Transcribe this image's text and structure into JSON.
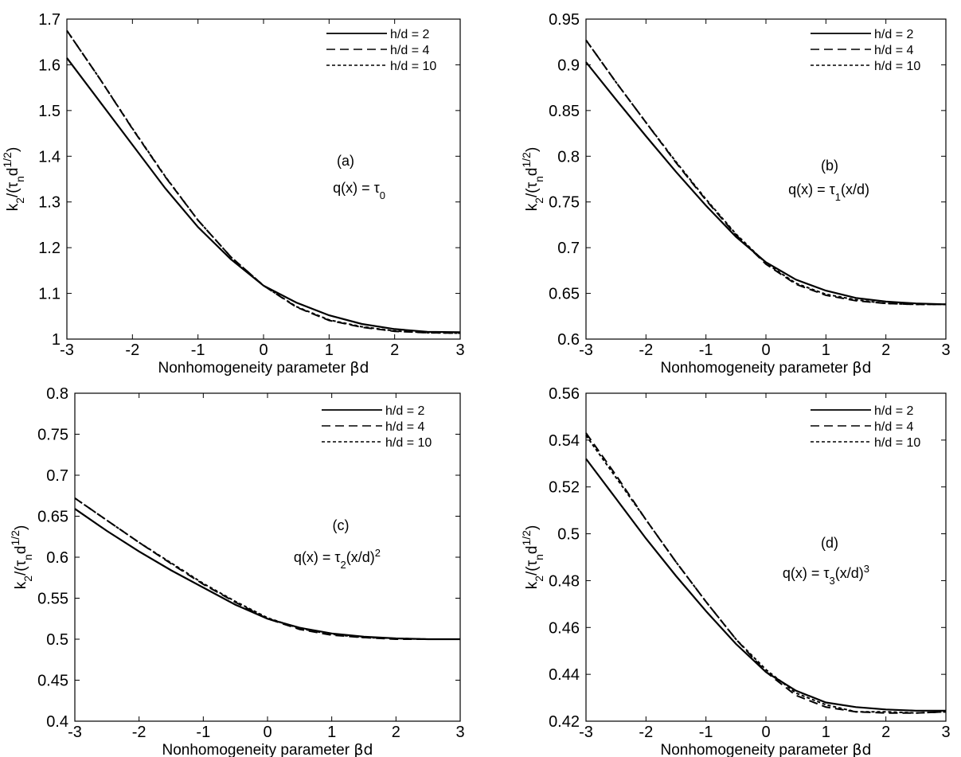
{
  "chart_data": [
    {
      "type": "line",
      "panel_label": "(a)",
      "annotation": "q(x) = τ",
      "annotation_sub": "0",
      "annotation_sup": "",
      "annotation_tail": "",
      "xlabel_main": "Nonhomogeneity parameter ",
      "xlabel_sym": "βd",
      "ylabel": {
        "k": "k",
        "k_sub": "2",
        "mid": "/(τ",
        "tau_sub": "n",
        "d": "d",
        "d_sup": "1/2",
        "end": ")"
      },
      "xlim": [
        -3,
        3
      ],
      "ylim": [
        1,
        1.7
      ],
      "xticks": [
        "-3",
        "-2",
        "-1",
        "0",
        "1",
        "2",
        "3"
      ],
      "xtick_values": [
        -3,
        -2,
        -1,
        0,
        1,
        2,
        3
      ],
      "yticks": [
        "1",
        "1.1",
        "1.2",
        "1.3",
        "1.4",
        "1.5",
        "1.6",
        "1.7"
      ],
      "ytick_values": [
        1,
        1.1,
        1.2,
        1.3,
        1.4,
        1.5,
        1.6,
        1.7
      ],
      "x": [
        -3,
        -2.5,
        -2,
        -1.5,
        -1,
        -0.5,
        0,
        0.5,
        1,
        1.5,
        2,
        2.5,
        3
      ],
      "series": [
        {
          "name": "h/d = 2",
          "style": "solid",
          "values": [
            1.615,
            1.52,
            1.425,
            1.33,
            1.245,
            1.175,
            1.117,
            1.08,
            1.052,
            1.033,
            1.022,
            1.016,
            1.015
          ]
        },
        {
          "name": "h/d = 4",
          "style": "dashed",
          "values": [
            1.675,
            1.57,
            1.46,
            1.355,
            1.26,
            1.18,
            1.117,
            1.07,
            1.041,
            1.026,
            1.017,
            1.014,
            1.013
          ]
        },
        {
          "name": "h/d = 10",
          "style": "dotted",
          "values": [
            1.675,
            1.57,
            1.461,
            1.356,
            1.26,
            1.18,
            1.117,
            1.071,
            1.042,
            1.027,
            1.018,
            1.014,
            1.013
          ]
        }
      ]
    },
    {
      "type": "line",
      "panel_label": "(b)",
      "annotation": "q(x) = τ",
      "annotation_sub": "1",
      "annotation_sup": "",
      "annotation_tail": "(x/d)",
      "xlabel_main": "Nonhomogeneity parameter ",
      "xlabel_sym": "βd",
      "ylabel": {
        "k": "k",
        "k_sub": "2",
        "mid": "/(τ",
        "tau_sub": "n",
        "d": "d",
        "d_sup": "1/2",
        "end": ")"
      },
      "xlim": [
        -3,
        3
      ],
      "ylim": [
        0.6,
        0.95
      ],
      "xticks": [
        "-3",
        "-2",
        "-1",
        "0",
        "1",
        "2",
        "3"
      ],
      "xtick_values": [
        -3,
        -2,
        -1,
        0,
        1,
        2,
        3
      ],
      "yticks": [
        "0.6",
        "0.65",
        "0.7",
        "0.75",
        "0.8",
        "0.85",
        "0.9",
        "0.95"
      ],
      "ytick_values": [
        0.6,
        0.65,
        0.7,
        0.75,
        0.8,
        0.85,
        0.9,
        0.95
      ],
      "x": [
        -3,
        -2.5,
        -2,
        -1.5,
        -1,
        -0.5,
        0,
        0.5,
        1,
        1.5,
        2,
        2.5,
        3
      ],
      "series": [
        {
          "name": "h/d = 2",
          "style": "solid",
          "values": [
            0.903,
            0.862,
            0.822,
            0.783,
            0.746,
            0.712,
            0.684,
            0.665,
            0.653,
            0.645,
            0.641,
            0.639,
            0.638
          ]
        },
        {
          "name": "h/d = 4",
          "style": "dashed",
          "values": [
            0.927,
            0.881,
            0.837,
            0.793,
            0.752,
            0.714,
            0.682,
            0.66,
            0.648,
            0.642,
            0.639,
            0.638,
            0.638
          ]
        },
        {
          "name": "h/d = 10",
          "style": "dotted",
          "values": [
            0.927,
            0.881,
            0.837,
            0.794,
            0.753,
            0.715,
            0.683,
            0.661,
            0.649,
            0.643,
            0.639,
            0.638,
            0.638
          ]
        }
      ]
    },
    {
      "type": "line",
      "panel_label": "(c)",
      "annotation": "q(x) = τ",
      "annotation_sub": "2",
      "annotation_sup": "2",
      "annotation_tail": "(x/d)",
      "xlabel_main": "Nonhomogeneity parameter ",
      "xlabel_sym": "βd",
      "ylabel": {
        "k": "k",
        "k_sub": "2",
        "mid": "/(τ",
        "tau_sub": "n",
        "d": "d",
        "d_sup": "1/2",
        "end": ")"
      },
      "xlim": [
        -3,
        3
      ],
      "ylim": [
        0.4,
        0.8
      ],
      "xticks": [
        "-3",
        "-2",
        "-1",
        "0",
        "1",
        "2",
        "3"
      ],
      "xtick_values": [
        -3,
        -2,
        -1,
        0,
        1,
        2,
        3
      ],
      "yticks": [
        "0.4",
        "0.45",
        "0.5",
        "0.55",
        "0.6",
        "0.65",
        "0.7",
        "0.75",
        "0.8"
      ],
      "ytick_values": [
        0.4,
        0.45,
        0.5,
        0.55,
        0.6,
        0.65,
        0.7,
        0.75,
        0.8
      ],
      "x": [
        -3,
        -2.5,
        -2,
        -1.5,
        -1,
        -0.5,
        0,
        0.5,
        1,
        1.5,
        2,
        2.5,
        3
      ],
      "series": [
        {
          "name": "h/d = 2",
          "style": "solid",
          "values": [
            0.659,
            0.632,
            0.607,
            0.584,
            0.563,
            0.542,
            0.525,
            0.514,
            0.507,
            0.503,
            0.501,
            0.5,
            0.5
          ]
        },
        {
          "name": "h/d = 4",
          "style": "dashed",
          "values": [
            0.672,
            0.645,
            0.618,
            0.592,
            0.567,
            0.545,
            0.525,
            0.512,
            0.505,
            0.502,
            0.5,
            0.5,
            0.5
          ]
        },
        {
          "name": "h/d = 10",
          "style": "dotted",
          "values": [
            0.672,
            0.645,
            0.618,
            0.593,
            0.568,
            0.546,
            0.526,
            0.513,
            0.506,
            0.502,
            0.501,
            0.5,
            0.5
          ]
        }
      ]
    },
    {
      "type": "line",
      "panel_label": "(d)",
      "annotation": "q(x) = τ",
      "annotation_sub": "3",
      "annotation_sup": "3",
      "annotation_tail": "(x/d)",
      "xlabel_main": "Nonhomogeneity parameter ",
      "xlabel_sym": "βd",
      "ylabel": {
        "k": "k",
        "k_sub": "2",
        "mid": "/(τ",
        "tau_sub": "n",
        "d": "d",
        "d_sup": "1/2",
        "end": ")"
      },
      "xlim": [
        -3,
        3
      ],
      "ylim": [
        0.42,
        0.56
      ],
      "xticks": [
        "-3",
        "-2",
        "-1",
        "0",
        "1",
        "2",
        "3"
      ],
      "xtick_values": [
        -3,
        -2,
        -1,
        0,
        1,
        2,
        3
      ],
      "yticks": [
        "0.42",
        "0.44",
        "0.46",
        "0.48",
        "0.5",
        "0.52",
        "0.54",
        "0.56"
      ],
      "ytick_values": [
        0.42,
        0.44,
        0.46,
        0.48,
        0.5,
        0.52,
        0.54,
        0.56
      ],
      "x": [
        -3,
        -2.5,
        -2,
        -1.5,
        -1,
        -0.5,
        0,
        0.5,
        1,
        1.5,
        2,
        2.5,
        3
      ],
      "series": [
        {
          "name": "h/d = 2",
          "style": "solid",
          "values": [
            0.532,
            0.515,
            0.498,
            0.482,
            0.467,
            0.453,
            0.441,
            0.433,
            0.428,
            0.426,
            0.425,
            0.4245,
            0.4245
          ]
        },
        {
          "name": "h/d = 4",
          "style": "dashed",
          "values": [
            0.543,
            0.525,
            0.506,
            0.488,
            0.471,
            0.455,
            0.441,
            0.431,
            0.426,
            0.424,
            0.4235,
            0.4235,
            0.424
          ]
        },
        {
          "name": "h/d = 10",
          "style": "dotted",
          "values": [
            0.542,
            0.524,
            0.506,
            0.488,
            0.471,
            0.455,
            0.442,
            0.432,
            0.427,
            0.424,
            0.424,
            0.4235,
            0.424
          ]
        }
      ]
    }
  ]
}
